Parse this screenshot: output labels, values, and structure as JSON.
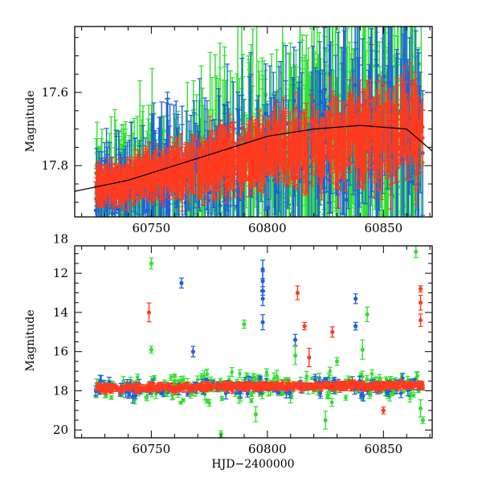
{
  "chart_data": [
    {
      "type": "scatter",
      "title": "",
      "xlabel": "",
      "ylabel": "Magnitude",
      "xlim": [
        60717,
        60871
      ],
      "ylim": [
        17.94,
        17.42
      ],
      "y_inverted": true,
      "grid": false,
      "legend": "none",
      "xticks": [
        "60750",
        "60800",
        "60850"
      ],
      "yticks": [
        "17.6",
        "17.8",
        "18"
      ],
      "trend": {
        "x": [
          60717,
          60740,
          60760,
          60780,
          60800,
          60820,
          60840,
          60860,
          60871
        ],
        "y": [
          17.87,
          17.84,
          17.8,
          17.76,
          17.72,
          17.7,
          17.69,
          17.7,
          17.76
        ]
      },
      "series": [
        {
          "color": "#30e030",
          "median": [
            17.88,
            17.78,
            17.69
          ],
          "scatter": 0.16
        },
        {
          "color": "#1f5fe0",
          "median": [
            17.88,
            17.78,
            17.69
          ],
          "scatter": 0.12
        },
        {
          "color": "#ff3b1f",
          "median": [
            17.86,
            17.77,
            17.7
          ],
          "scatter": 0.07
        }
      ]
    },
    {
      "type": "scatter",
      "title": "",
      "xlabel": "HJD−2400000",
      "ylabel": "Magnitude",
      "xlim": [
        60717,
        60871
      ],
      "ylim": [
        20.4,
        10.6
      ],
      "y_inverted": true,
      "grid": false,
      "legend": "none",
      "xticks": [
        "60750",
        "60800",
        "60850"
      ],
      "yticks": [
        "12",
        "14",
        "16",
        "18",
        "20"
      ],
      "outliers": [
        {
          "color": "#30e030",
          "points": [
            [
              60750,
              11.5
            ],
            [
              60750,
              15.9
            ],
            [
              60760,
              17.5
            ],
            [
              60790,
              14.6
            ],
            [
              60795,
              19.2
            ],
            [
              60812,
              16.2
            ],
            [
              60825,
              19.5
            ],
            [
              60830,
              16.5
            ],
            [
              60841,
              15.9
            ],
            [
              60843,
              14.1
            ],
            [
              60864,
              10.9
            ],
            [
              60866,
              18.9
            ],
            [
              60867,
              19.5
            ],
            [
              60780,
              20.2
            ]
          ]
        },
        {
          "color": "#1f5fe0",
          "points": [
            [
              60763,
              12.5
            ],
            [
              60798,
              11.8
            ],
            [
              60798,
              12.4
            ],
            [
              60798,
              12.9
            ],
            [
              60798,
              13.3
            ],
            [
              60798,
              14.5
            ],
            [
              60812,
              15.4
            ],
            [
              60768,
              16.0
            ],
            [
              60838,
              13.3
            ],
            [
              60838,
              14.7
            ],
            [
              60742,
              18.3
            ]
          ]
        },
        {
          "color": "#ff3b1f",
          "points": [
            [
              60749,
              14.0
            ],
            [
              60813,
              13.0
            ],
            [
              60816,
              14.7
            ],
            [
              60828,
              15.0
            ],
            [
              60818,
              16.3
            ],
            [
              60866,
              12.8
            ],
            [
              60866,
              13.5
            ],
            [
              60866,
              14.4
            ],
            [
              60850,
              19.0
            ]
          ]
        }
      ]
    }
  ]
}
